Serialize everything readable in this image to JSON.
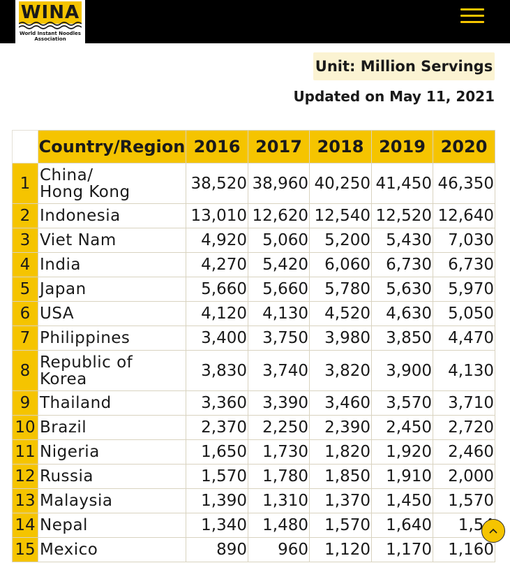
{
  "header": {
    "logo_text": "WINA",
    "logo_subtitle": "World Instant Noodles Association",
    "menu_icon": "hamburger-menu-icon"
  },
  "unit_label": "Unit: Million Servings",
  "updated_label": "Updated on May 11, 2021",
  "table": {
    "columns": [
      "",
      "Country/Region",
      "2016",
      "2017",
      "2018",
      "2019",
      "2020"
    ],
    "rows": [
      {
        "rank": "1",
        "country": "China/\nHong Kong",
        "values": [
          "38,520",
          "38,960",
          "40,250",
          "41,450",
          "46,350"
        ]
      },
      {
        "rank": "2",
        "country": "Indonesia",
        "values": [
          "13,010",
          "12,620",
          "12,540",
          "12,520",
          "12,640"
        ]
      },
      {
        "rank": "3",
        "country": "Viet Nam",
        "values": [
          "4,920",
          "5,060",
          "5,200",
          "5,430",
          "7,030"
        ]
      },
      {
        "rank": "4",
        "country": "India",
        "values": [
          "4,270",
          "5,420",
          "6,060",
          "6,730",
          "6,730"
        ]
      },
      {
        "rank": "5",
        "country": "Japan",
        "values": [
          "5,660",
          "5,660",
          "5,780",
          "5,630",
          "5,970"
        ]
      },
      {
        "rank": "6",
        "country": "USA",
        "values": [
          "4,120",
          "4,130",
          "4,520",
          "4,630",
          "5,050"
        ]
      },
      {
        "rank": "7",
        "country": "Philippines",
        "values": [
          "3,400",
          "3,750",
          "3,980",
          "3,850",
          "4,470"
        ]
      },
      {
        "rank": "8",
        "country": "Republic of\nKorea",
        "values": [
          "3,830",
          "3,740",
          "3,820",
          "3,900",
          "4,130"
        ]
      },
      {
        "rank": "9",
        "country": "Thailand",
        "values": [
          "3,360",
          "3,390",
          "3,460",
          "3,570",
          "3,710"
        ]
      },
      {
        "rank": "10",
        "country": "Brazil",
        "values": [
          "2,370",
          "2,250",
          "2,390",
          "2,450",
          "2,720"
        ]
      },
      {
        "rank": "11",
        "country": "Nigeria",
        "values": [
          "1,650",
          "1,730",
          "1,820",
          "1,920",
          "2,460"
        ]
      },
      {
        "rank": "12",
        "country": "Russia",
        "values": [
          "1,570",
          "1,780",
          "1,850",
          "1,910",
          "2,000"
        ]
      },
      {
        "rank": "13",
        "country": "Malaysia",
        "values": [
          "1,390",
          "1,310",
          "1,370",
          "1,450",
          "1,570"
        ]
      },
      {
        "rank": "14",
        "country": "Nepal",
        "values": [
          "1,340",
          "1,480",
          "1,570",
          "1,640",
          "1,54"
        ]
      },
      {
        "rank": "15",
        "country": "Mexico",
        "values": [
          "890",
          "960",
          "1,120",
          "1,170",
          "1,160"
        ]
      }
    ]
  },
  "scroll_top_icon": "chevron-up-icon",
  "colors": {
    "accent": "#f5c400",
    "header_bg": "#000000",
    "unit_bg": "#fbf3d2"
  }
}
